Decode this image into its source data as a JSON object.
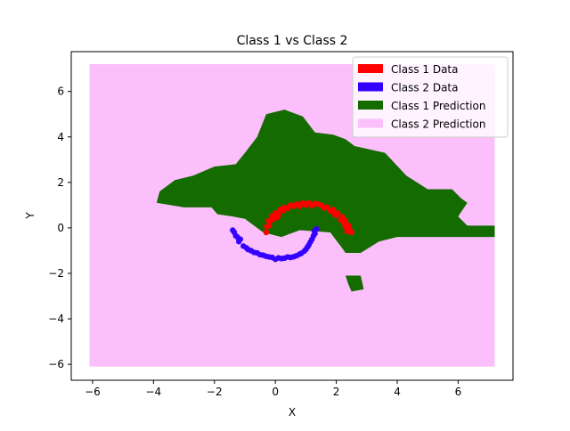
{
  "chart_data": {
    "type": "scatter",
    "title": "Class 1 vs Class 2",
    "xlabel": "X",
    "ylabel": "Y",
    "xlim": [
      -6.7,
      7.8
    ],
    "ylim": [
      -6.7,
      7.75
    ],
    "xticks": [
      -6,
      -4,
      -2,
      0,
      2,
      4,
      6
    ],
    "yticks": [
      -6,
      -4,
      -2,
      0,
      2,
      4,
      6
    ],
    "grid": false,
    "legend_position": "top-right",
    "colors": {
      "class1_data": "#ff0000",
      "class2_data": "#3300ff",
      "class1_prediction": "#146b00",
      "class2_prediction": "#fbc0fb"
    },
    "legend": [
      {
        "label": "Class 1 Data",
        "color": "#ff0000"
      },
      {
        "label": "Class 2 Data",
        "color": "#3300ff"
      },
      {
        "label": "Class 1 Prediction",
        "color": "#146b00"
      },
      {
        "label": "Class 2 Prediction",
        "color": "#fbc0fb"
      }
    ],
    "prediction_grid": {
      "x": [
        -6.1,
        7.2
      ],
      "y": [
        -6.1,
        7.2
      ]
    },
    "class1_prediction_region": [
      [
        -3.9,
        1.1
      ],
      [
        -3.8,
        1.6
      ],
      [
        -3.3,
        2.1
      ],
      [
        -2.7,
        2.3
      ],
      [
        -2.0,
        2.7
      ],
      [
        -1.3,
        2.8
      ],
      [
        -1.0,
        3.3
      ],
      [
        -0.6,
        4.0
      ],
      [
        -0.3,
        5.0
      ],
      [
        0.3,
        5.2
      ],
      [
        0.9,
        4.9
      ],
      [
        1.3,
        4.2
      ],
      [
        1.9,
        4.1
      ],
      [
        2.3,
        3.9
      ],
      [
        2.6,
        3.6
      ],
      [
        3.6,
        3.3
      ],
      [
        4.3,
        2.3
      ],
      [
        5.0,
        1.7
      ],
      [
        5.8,
        1.7
      ],
      [
        6.1,
        1.3
      ],
      [
        6.3,
        1.1
      ],
      [
        6.0,
        0.5
      ],
      [
        6.3,
        0.1
      ],
      [
        7.2,
        0.1
      ],
      [
        7.2,
        -0.4
      ],
      [
        5.9,
        -0.4
      ],
      [
        5.3,
        -0.4
      ],
      [
        4.0,
        -0.4
      ],
      [
        3.4,
        -0.6
      ],
      [
        2.8,
        -1.1
      ],
      [
        2.3,
        -1.1
      ],
      [
        2.2,
        -0.9
      ],
      [
        1.8,
        -0.2
      ],
      [
        0.8,
        -0.1
      ],
      [
        0.2,
        -0.4
      ],
      [
        -0.4,
        -0.2
      ],
      [
        -1.0,
        0.4
      ],
      [
        -1.4,
        0.5
      ],
      [
        -1.9,
        0.6
      ],
      [
        -2.1,
        0.9
      ],
      [
        -3.0,
        0.9
      ]
    ],
    "class1_prediction_island": [
      [
        2.3,
        -2.1
      ],
      [
        2.8,
        -2.1
      ],
      [
        2.9,
        -2.7
      ],
      [
        2.5,
        -2.8
      ],
      [
        2.4,
        -2.5
      ]
    ],
    "class1_data": [
      [
        -0.3,
        -0.2
      ],
      [
        -0.28,
        0.05
      ],
      [
        -0.22,
        0.3
      ],
      [
        -0.12,
        0.5
      ],
      [
        0.0,
        0.65
      ],
      [
        0.15,
        0.8
      ],
      [
        0.3,
        0.9
      ],
      [
        0.5,
        1.0
      ],
      [
        0.7,
        1.05
      ],
      [
        0.9,
        1.1
      ],
      [
        1.1,
        1.1
      ],
      [
        1.3,
        1.07
      ],
      [
        1.5,
        1.0
      ],
      [
        1.7,
        0.92
      ],
      [
        1.9,
        0.8
      ],
      [
        2.05,
        0.65
      ],
      [
        2.2,
        0.48
      ],
      [
        2.3,
        0.3
      ],
      [
        2.4,
        0.1
      ],
      [
        2.45,
        -0.1
      ],
      [
        2.5,
        -0.2
      ],
      [
        -0.2,
        0.1
      ],
      [
        0.1,
        0.55
      ],
      [
        0.4,
        0.85
      ],
      [
        0.8,
        0.95
      ],
      [
        1.2,
        0.98
      ],
      [
        1.6,
        0.88
      ],
      [
        2.0,
        0.55
      ],
      [
        2.3,
        0.05
      ],
      [
        0.6,
        0.95
      ],
      [
        1.4,
        1.05
      ],
      [
        1.8,
        0.75
      ],
      [
        2.15,
        0.35
      ],
      [
        -0.1,
        0.35
      ],
      [
        0.25,
        0.75
      ],
      [
        1.0,
        1.0
      ],
      [
        2.35,
        -0.15
      ],
      [
        1.95,
        0.6
      ],
      [
        0.05,
        0.45
      ],
      [
        0.95,
        1.05
      ],
      [
        2.25,
        0.2
      ]
    ],
    "class2_data": [
      [
        -1.4,
        -0.1
      ],
      [
        -1.3,
        -0.35
      ],
      [
        -1.2,
        -0.6
      ],
      [
        -1.05,
        -0.8
      ],
      [
        -0.9,
        -0.95
      ],
      [
        -0.7,
        -1.08
      ],
      [
        -0.5,
        -1.18
      ],
      [
        -0.3,
        -1.25
      ],
      [
        -0.1,
        -1.3
      ],
      [
        0.1,
        -1.32
      ],
      [
        0.3,
        -1.33
      ],
      [
        0.5,
        -1.3
      ],
      [
        0.7,
        -1.22
      ],
      [
        0.85,
        -1.12
      ],
      [
        1.0,
        -0.95
      ],
      [
        1.1,
        -0.75
      ],
      [
        1.2,
        -0.5
      ],
      [
        1.3,
        -0.25
      ],
      [
        1.35,
        -0.05
      ],
      [
        -1.35,
        -0.2
      ],
      [
        -1.15,
        -0.5
      ],
      [
        -0.95,
        -0.88
      ],
      [
        -0.6,
        -1.1
      ],
      [
        -0.2,
        -1.28
      ],
      [
        0.2,
        -1.35
      ],
      [
        0.6,
        -1.27
      ],
      [
        0.95,
        -1.02
      ],
      [
        1.15,
        -0.62
      ],
      [
        1.28,
        -0.15
      ],
      [
        -0.8,
        -1.0
      ],
      [
        0.0,
        -1.38
      ],
      [
        0.4,
        -1.28
      ],
      [
        1.05,
        -0.85
      ],
      [
        -1.25,
        -0.4
      ],
      [
        -0.4,
        -1.2
      ],
      [
        0.8,
        -1.15
      ],
      [
        1.25,
        -0.35
      ]
    ]
  }
}
